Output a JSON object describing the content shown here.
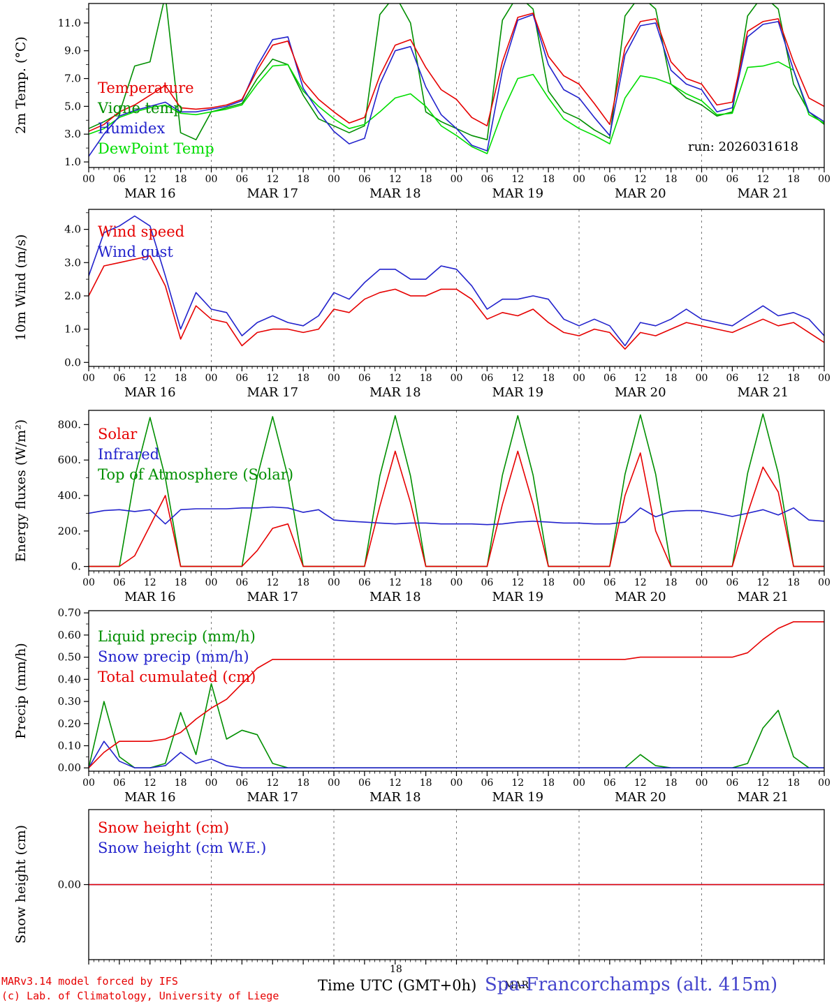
{
  "texts": {
    "run": "run: 2026031618",
    "time_axis": "Time UTC (GMT+0h)",
    "overlap_day": "18",
    "overlap_month": "MAR",
    "station": "Spa-Francorchamps (alt. 415m)",
    "credit1": "MARv3.14 model forced by IFS",
    "credit2": "(c) Lab. of Climatology, University of Liege"
  },
  "colors": {
    "red": "#e60000",
    "blue": "#2222cc",
    "green": "#008f00",
    "light_green": "#00dd00",
    "title_blue": "#4444cc"
  },
  "axis": {
    "days": [
      "MAR 16",
      "MAR 17",
      "MAR 18",
      "MAR 19",
      "MAR 20",
      "MAR 21"
    ],
    "hour_labels": [
      "00",
      "06",
      "12",
      "18"
    ],
    "hours_total": 144,
    "sample_step_hours": 3
  },
  "chart_data": [
    {
      "type": "line",
      "name": "2m-temperature",
      "ylabel": "2m Temp. (°C)",
      "ylim": [
        0.6,
        12.4
      ],
      "yticks": {
        "values": [
          1,
          3,
          5,
          7,
          9,
          11
        ],
        "labels": [
          "1.0",
          "3.0",
          "5.0",
          "7.0",
          "9.0",
          "11.0"
        ]
      },
      "legend": [
        {
          "label": "Temperature",
          "color": "red"
        },
        {
          "label": "Vigne temp",
          "color": "green"
        },
        {
          "label": "Humidex",
          "color": "blue"
        },
        {
          "label": "DewPoint Temp",
          "color": "light_green"
        }
      ],
      "series": [
        {
          "name": "Vigne temp",
          "color": "green",
          "values": [
            3.4,
            3.9,
            4.5,
            7.9,
            8.2,
            13.0,
            3.1,
            2.6,
            4.6,
            4.9,
            5.2,
            7.0,
            8.4,
            8.0,
            5.8,
            4.1,
            3.6,
            3.1,
            3.6,
            11.6,
            13.0,
            11.0,
            4.6,
            3.9,
            3.4,
            2.9,
            2.6,
            11.2,
            13.0,
            12.0,
            6.1,
            4.6,
            4.1,
            3.3,
            2.7,
            11.5,
            13.0,
            12.0,
            6.6,
            5.6,
            5.1,
            4.3,
            4.6,
            11.5,
            13.0,
            12.0,
            6.6,
            4.6,
            3.7
          ]
        },
        {
          "name": "DewPoint Temp",
          "color": "light_green",
          "values": [
            3.0,
            3.4,
            4.2,
            4.6,
            4.9,
            5.1,
            4.5,
            4.4,
            4.6,
            4.8,
            5.1,
            6.6,
            7.9,
            8.0,
            6.1,
            5.0,
            4.1,
            3.4,
            3.7,
            4.6,
            5.6,
            5.9,
            5.0,
            3.6,
            2.9,
            2.1,
            1.6,
            4.6,
            7.0,
            7.3,
            5.6,
            4.1,
            3.4,
            2.9,
            2.3,
            5.6,
            7.2,
            7.0,
            6.6,
            5.9,
            5.4,
            4.4,
            4.5,
            7.8,
            7.9,
            8.2,
            7.6,
            4.4,
            3.8
          ]
        },
        {
          "name": "Humidex",
          "color": "blue",
          "values": [
            1.4,
            3.0,
            4.3,
            4.7,
            5.0,
            5.3,
            4.6,
            4.6,
            4.8,
            5.0,
            5.4,
            7.9,
            9.8,
            10.0,
            6.3,
            4.6,
            3.2,
            2.3,
            2.7,
            6.6,
            9.0,
            9.3,
            6.4,
            4.4,
            3.4,
            2.2,
            1.8,
            7.6,
            11.2,
            11.6,
            8.0,
            6.2,
            5.6,
            4.2,
            2.9,
            8.7,
            10.8,
            11.0,
            7.6,
            6.6,
            6.2,
            4.6,
            4.9,
            10.0,
            10.9,
            11.1,
            7.6,
            4.6,
            3.9
          ]
        },
        {
          "name": "Temperature",
          "color": "red",
          "values": [
            3.2,
            3.7,
            4.6,
            5.1,
            5.8,
            6.5,
            4.9,
            4.8,
            4.9,
            5.1,
            5.5,
            7.6,
            9.4,
            9.7,
            6.8,
            5.5,
            4.6,
            3.8,
            4.2,
            7.2,
            9.4,
            9.8,
            7.8,
            6.2,
            5.5,
            4.2,
            3.6,
            8.2,
            11.4,
            11.7,
            8.6,
            7.2,
            6.6,
            5.2,
            3.7,
            9.2,
            11.1,
            11.3,
            8.2,
            7.0,
            6.6,
            5.1,
            5.3,
            10.4,
            11.1,
            11.3,
            8.2,
            5.6,
            5.0
          ]
        }
      ]
    },
    {
      "type": "line",
      "name": "10m-wind",
      "ylabel": "10m Wind (m/s)",
      "ylim": [
        -0.12,
        4.6
      ],
      "yticks": {
        "values": [
          0,
          1,
          2,
          3,
          4
        ],
        "labels": [
          "0.0",
          "1.0",
          "2.0",
          "3.0",
          "4.0"
        ]
      },
      "legend": [
        {
          "label": "Wind speed",
          "color": "red"
        },
        {
          "label": "Wind gust",
          "color": "blue"
        }
      ],
      "series": [
        {
          "name": "Wind gust",
          "color": "blue",
          "values": [
            2.6,
            3.9,
            4.1,
            4.4,
            4.1,
            2.6,
            1.0,
            2.1,
            1.6,
            1.5,
            0.8,
            1.2,
            1.4,
            1.2,
            1.1,
            1.4,
            2.1,
            1.9,
            2.4,
            2.8,
            2.8,
            2.5,
            2.5,
            2.9,
            2.8,
            2.3,
            1.6,
            1.9,
            1.9,
            2.0,
            1.9,
            1.3,
            1.1,
            1.3,
            1.1,
            0.5,
            1.2,
            1.1,
            1.3,
            1.6,
            1.3,
            1.2,
            1.1,
            1.4,
            1.7,
            1.4,
            1.5,
            1.3,
            0.8
          ]
        },
        {
          "name": "Wind speed",
          "color": "red",
          "values": [
            2.0,
            2.9,
            3.0,
            3.1,
            3.2,
            2.3,
            0.7,
            1.7,
            1.3,
            1.2,
            0.5,
            0.9,
            1.0,
            1.0,
            0.9,
            1.0,
            1.6,
            1.5,
            1.9,
            2.1,
            2.2,
            2.0,
            2.0,
            2.2,
            2.2,
            1.9,
            1.3,
            1.5,
            1.4,
            1.6,
            1.2,
            0.9,
            0.8,
            1.0,
            0.9,
            0.4,
            0.9,
            0.8,
            1.0,
            1.2,
            1.1,
            1.0,
            0.9,
            1.1,
            1.3,
            1.1,
            1.2,
            0.9,
            0.6
          ]
        }
      ]
    },
    {
      "type": "line",
      "name": "energy-fluxes",
      "ylabel": "Energy fluxes (W/m²)",
      "ylim": [
        -25,
        880
      ],
      "yticks": {
        "values": [
          0,
          200,
          400,
          600,
          800
        ],
        "labels": [
          "0.",
          "200.",
          "400.",
          "600.",
          "800."
        ]
      },
      "legend": [
        {
          "label": "Solar",
          "color": "red"
        },
        {
          "label": "Infrared",
          "color": "blue"
        },
        {
          "label": "Top of Atmosphere (Solar)",
          "color": "green"
        }
      ],
      "series": [
        {
          "name": "Top of Atmosphere (Solar)",
          "color": "green",
          "values": [
            0,
            0,
            0,
            500,
            840,
            500,
            0,
            0,
            0,
            0,
            0,
            505,
            845,
            505,
            0,
            0,
            0,
            0,
            0,
            510,
            850,
            510,
            0,
            0,
            0,
            0,
            0,
            515,
            850,
            515,
            0,
            0,
            0,
            0,
            0,
            520,
            855,
            520,
            0,
            0,
            0,
            0,
            0,
            525,
            860,
            525,
            0,
            0,
            0
          ]
        },
        {
          "name": "Infrared",
          "color": "blue",
          "values": [
            300,
            315,
            320,
            310,
            320,
            240,
            320,
            325,
            325,
            325,
            330,
            330,
            335,
            330,
            305,
            320,
            262,
            255,
            250,
            245,
            240,
            245,
            245,
            240,
            240,
            240,
            236,
            240,
            250,
            255,
            250,
            245,
            245,
            240,
            240,
            250,
            330,
            280,
            310,
            315,
            315,
            300,
            282,
            300,
            320,
            290,
            330,
            262,
            255
          ]
        },
        {
          "name": "Solar",
          "color": "red",
          "values": [
            0,
            0,
            0,
            60,
            230,
            400,
            0,
            0,
            0,
            0,
            0,
            90,
            215,
            240,
            0,
            0,
            0,
            0,
            0,
            340,
            650,
            360,
            0,
            0,
            0,
            0,
            0,
            350,
            650,
            350,
            0,
            0,
            0,
            0,
            0,
            400,
            640,
            200,
            0,
            0,
            0,
            0,
            0,
            300,
            560,
            420,
            0,
            0,
            0
          ]
        }
      ]
    },
    {
      "type": "line",
      "name": "precipitation",
      "ylabel": "Precip (mm/h)",
      "ylim": [
        -0.015,
        0.71
      ],
      "yticks": {
        "values": [
          0,
          0.1,
          0.2,
          0.3,
          0.4,
          0.5,
          0.6,
          0.7
        ],
        "labels": [
          "0.00",
          "0.10",
          "0.20",
          "0.30",
          "0.40",
          "0.50",
          "0.60",
          "0.70"
        ]
      },
      "legend": [
        {
          "label": "Liquid precip (mm/h)",
          "color": "green"
        },
        {
          "label": "Snow precip (mm/h)",
          "color": "blue"
        },
        {
          "label": "Total cumulated (cm)",
          "color": "red"
        }
      ],
      "series": [
        {
          "name": "Liquid precip",
          "color": "green",
          "values": [
            0,
            0.3,
            0.05,
            0,
            0,
            0.02,
            0.25,
            0.06,
            0.38,
            0.13,
            0.17,
            0.15,
            0.02,
            0,
            0,
            0,
            0,
            0,
            0,
            0,
            0,
            0,
            0,
            0,
            0,
            0,
            0,
            0,
            0,
            0,
            0,
            0,
            0,
            0,
            0,
            0,
            0.06,
            0.01,
            0,
            0,
            0,
            0,
            0,
            0.02,
            0.18,
            0.26,
            0.05,
            0,
            0
          ]
        },
        {
          "name": "Snow precip",
          "color": "blue",
          "values": [
            0,
            0.12,
            0.03,
            0,
            0,
            0.01,
            0.07,
            0.02,
            0.04,
            0.01,
            0,
            0,
            0,
            0,
            0,
            0,
            0,
            0,
            0,
            0,
            0,
            0,
            0,
            0,
            0,
            0,
            0,
            0,
            0,
            0,
            0,
            0,
            0,
            0,
            0,
            0,
            0,
            0,
            0,
            0,
            0,
            0,
            0,
            0,
            0,
            0,
            0,
            0,
            0
          ]
        },
        {
          "name": "Total cumulated",
          "color": "red",
          "values": [
            0,
            0.07,
            0.12,
            0.12,
            0.12,
            0.13,
            0.16,
            0.22,
            0.27,
            0.31,
            0.38,
            0.45,
            0.49,
            0.49,
            0.49,
            0.49,
            0.49,
            0.49,
            0.49,
            0.49,
            0.49,
            0.49,
            0.49,
            0.49,
            0.49,
            0.49,
            0.49,
            0.49,
            0.49,
            0.49,
            0.49,
            0.49,
            0.49,
            0.49,
            0.49,
            0.49,
            0.5,
            0.5,
            0.5,
            0.5,
            0.5,
            0.5,
            0.5,
            0.52,
            0.58,
            0.63,
            0.66,
            0.66,
            0.66
          ]
        }
      ]
    },
    {
      "type": "line",
      "name": "snow-height",
      "ylabel": "Snow height (cm)",
      "ylim": [
        -1,
        1
      ],
      "yticks": {
        "values": [
          0
        ],
        "labels": [
          "0.00"
        ]
      },
      "legend": [
        {
          "label": "Snow height (cm)",
          "color": "red"
        },
        {
          "label": "Snow height (cm W.E.)",
          "color": "blue"
        }
      ],
      "series": [
        {
          "name": "Snow height W.E.",
          "color": "blue",
          "values": [
            0,
            0,
            0,
            0,
            0,
            0,
            0,
            0,
            0,
            0,
            0,
            0,
            0,
            0,
            0,
            0,
            0,
            0,
            0,
            0,
            0,
            0,
            0,
            0,
            0,
            0,
            0,
            0,
            0,
            0,
            0,
            0,
            0,
            0,
            0,
            0,
            0,
            0,
            0,
            0,
            0,
            0,
            0,
            0,
            0,
            0,
            0,
            0,
            0
          ]
        },
        {
          "name": "Snow height",
          "color": "red",
          "values": [
            0,
            0,
            0,
            0,
            0,
            0,
            0,
            0,
            0,
            0,
            0,
            0,
            0,
            0,
            0,
            0,
            0,
            0,
            0,
            0,
            0,
            0,
            0,
            0,
            0,
            0,
            0,
            0,
            0,
            0,
            0,
            0,
            0,
            0,
            0,
            0,
            0,
            0,
            0,
            0,
            0,
            0,
            0,
            0,
            0,
            0,
            0,
            0,
            0
          ]
        }
      ]
    }
  ]
}
